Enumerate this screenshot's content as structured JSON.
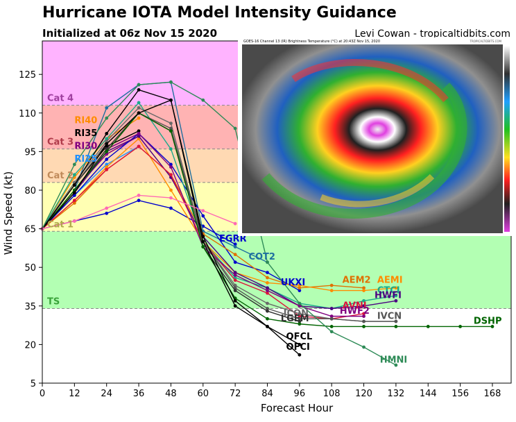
{
  "header": {
    "title": "Hurricane IOTA Model Intensity Guidance",
    "subtitle": "Initialized at 06z Nov 15 2020",
    "credit": "Levi Cowan - tropicaltidbits.com"
  },
  "satellite": {
    "caption": "GOES-16 Channel 13 (IR) Brightness Temperature (°C) at 20:43Z Nov 15, 2020",
    "watermark": "TROPICALTIDBITS.COM"
  },
  "chart_data": {
    "type": "line",
    "xlabel": "Forecast Hour",
    "ylabel": "Wind Speed (kt)",
    "xlim": [
      0,
      175
    ],
    "ylim": [
      5,
      138
    ],
    "xticks": [
      0,
      12,
      24,
      36,
      48,
      60,
      72,
      84,
      96,
      108,
      120,
      132,
      144,
      156,
      168
    ],
    "yticks": [
      5,
      20,
      35,
      50,
      65,
      80,
      95,
      110,
      125
    ],
    "bands": [
      {
        "name": "TS",
        "from": 34,
        "to": 64,
        "color": "#b3ffb3",
        "labelColor": "#3aa33a"
      },
      {
        "name": "Cat 1",
        "from": 64,
        "to": 83,
        "color": "#ffffb3",
        "labelColor": "#b0a84a"
      },
      {
        "name": "Cat 2",
        "from": 83,
        "to": 96,
        "color": "#ffd9b3",
        "labelColor": "#c08a5a"
      },
      {
        "name": "Cat 3",
        "from": 96,
        "to": 113,
        "color": "#ffb3b3",
        "labelColor": "#b03a4a"
      },
      {
        "name": "Cat 4",
        "from": 113,
        "to": 138,
        "color": "#ffb3ff",
        "labelColor": "#a040a0"
      }
    ],
    "series": [
      {
        "name": "RI40",
        "color": "#ff8c00",
        "x": [
          0,
          12,
          24,
          36
        ],
        "y": [
          65,
          85,
          100,
          108
        ]
      },
      {
        "name": "RI35",
        "color": "#000000",
        "x": [
          0,
          12,
          24,
          36
        ],
        "y": [
          65,
          82,
          97,
          103
        ]
      },
      {
        "name": "RI30",
        "color": "#800080",
        "x": [
          0,
          12,
          24,
          36
        ],
        "y": [
          65,
          80,
          94,
          101
        ]
      },
      {
        "name": "RI25",
        "color": "#1e90ff",
        "x": [
          0,
          12,
          24,
          36
        ],
        "y": [
          65,
          78,
          90,
          97
        ]
      },
      {
        "name": "EGRR",
        "color": "#0000cd",
        "x": [
          0,
          12,
          24,
          36,
          48,
          60,
          72
        ],
        "y": [
          65,
          68,
          71,
          76,
          73,
          66,
          59
        ]
      },
      {
        "name": "COT2",
        "color": "#1f6f9f",
        "x": [
          0,
          12,
          24,
          36,
          48,
          60,
          72,
          84
        ],
        "y": [
          65,
          80,
          112,
          121,
          122,
          64,
          58,
          52
        ]
      },
      {
        "name": "UKXI",
        "color": "#0000cd",
        "x": [
          0,
          12,
          24,
          36,
          48,
          60,
          72,
          84,
          96
        ],
        "y": [
          65,
          78,
          92,
          102,
          90,
          70,
          52,
          48,
          41
        ]
      },
      {
        "name": "AEM2",
        "color": "#e07000",
        "x": [
          0,
          12,
          24,
          36,
          48,
          60,
          72,
          84,
          96,
          108,
          120
        ],
        "y": [
          65,
          75,
          88,
          97,
          86,
          63,
          55,
          46,
          42,
          43,
          42
        ]
      },
      {
        "name": "AEMI",
        "color": "#ff8c00",
        "x": [
          0,
          12,
          24,
          36,
          48,
          60,
          72,
          84,
          96,
          108,
          120,
          132
        ],
        "y": [
          65,
          76,
          89,
          100,
          80,
          60,
          48,
          44,
          43,
          41,
          41,
          42
        ]
      },
      {
        "name": "CTCI",
        "color": "#1aaa8a",
        "x": [
          0,
          12,
          24,
          36,
          48,
          60,
          72,
          84,
          96,
          108,
          120,
          132
        ],
        "y": [
          65,
          86,
          100,
          114,
          96,
          60,
          46,
          42,
          36,
          34,
          37,
          39
        ]
      },
      {
        "name": "HWFI",
        "color": "#4b0082",
        "x": [
          0,
          12,
          24,
          36,
          48,
          60,
          72,
          84,
          96,
          108,
          120,
          132
        ],
        "y": [
          65,
          79,
          95,
          101,
          85,
          62,
          48,
          42,
          35,
          34,
          35,
          37
        ]
      },
      {
        "name": "AVNI",
        "color": "#dc143c",
        "x": [
          0,
          12,
          24,
          36,
          48,
          60,
          72,
          84,
          96,
          108,
          120
        ],
        "y": [
          65,
          76,
          88,
          97,
          86,
          60,
          45,
          40,
          31,
          30,
          32
        ]
      },
      {
        "name": "HWF2",
        "color": "#800080",
        "x": [
          0,
          12,
          24,
          36,
          48,
          60,
          72,
          84,
          96,
          108,
          120
        ],
        "y": [
          65,
          79,
          96,
          102,
          89,
          58,
          47,
          41,
          35,
          31,
          31
        ]
      },
      {
        "name": "ICON",
        "color": "#696969",
        "x": [
          0,
          12,
          24,
          36,
          48,
          60,
          72,
          84,
          96,
          108,
          120,
          132
        ],
        "y": [
          65,
          83,
          99,
          112,
          106,
          60,
          43,
          36,
          32,
          30,
          29,
          29
        ]
      },
      {
        "name": "IVCN",
        "color": "#555555",
        "x": [
          0,
          12,
          24,
          36,
          48,
          60,
          72,
          84,
          96,
          108,
          120,
          132
        ],
        "y": [
          65,
          82,
          98,
          110,
          104,
          60,
          42,
          34,
          30,
          30,
          29,
          29
        ]
      },
      {
        "name": "LGEM",
        "color": "#333333",
        "x": [
          0,
          12,
          24,
          36,
          48,
          60,
          72,
          84,
          96
        ],
        "y": [
          65,
          80,
          96,
          110,
          103,
          58,
          41,
          33,
          29
        ]
      },
      {
        "name": "DSHP",
        "color": "#006400",
        "x": [
          0,
          12,
          24,
          36,
          48,
          60,
          72,
          84,
          96,
          108,
          120,
          132,
          144,
          156,
          168
        ],
        "y": [
          65,
          80,
          95,
          110,
          103,
          58,
          38,
          30,
          28,
          27,
          27,
          27,
          27,
          27,
          27
        ]
      },
      {
        "name": "QFCL",
        "color": "#000000",
        "x": [
          0,
          12,
          24,
          36,
          48,
          60,
          72,
          84,
          96
        ],
        "y": [
          65,
          82,
          102,
          119,
          115,
          62,
          37,
          27,
          20
        ]
      },
      {
        "name": "OFCI",
        "color": "#000000",
        "x": [
          0,
          12,
          24,
          36,
          48,
          60,
          72,
          84,
          96
        ],
        "y": [
          65,
          79,
          98,
          110,
          115,
          60,
          35,
          27,
          16
        ]
      },
      {
        "name": "HMNI",
        "color": "#2e8b57",
        "x": [
          0,
          12,
          24,
          36,
          48,
          60,
          72,
          84,
          96,
          108,
          120,
          132
        ],
        "y": [
          65,
          90,
          108,
          121,
          122,
          115,
          104,
          52,
          36,
          25,
          19,
          12
        ]
      },
      {
        "name": "NVGI",
        "color": "#ff69b4",
        "x": [
          0,
          12,
          24,
          36,
          48,
          60,
          72
        ],
        "y": [
          65,
          68,
          73,
          78,
          77,
          72,
          67
        ]
      }
    ],
    "labels": [
      {
        "text": "RI40",
        "x": 12,
        "y": 106,
        "color": "#ff8c00"
      },
      {
        "text": "RI35",
        "x": 12,
        "y": 101,
        "color": "#000000"
      },
      {
        "text": "RI30",
        "x": 12,
        "y": 96,
        "color": "#800080"
      },
      {
        "text": "RI25",
        "x": 12,
        "y": 91,
        "color": "#1e90ff"
      },
      {
        "text": "EGRR",
        "x": 66,
        "y": 60,
        "color": "#0000cd"
      },
      {
        "text": "COT2",
        "x": 77,
        "y": 53,
        "color": "#1f6f9f"
      },
      {
        "text": "UKXI",
        "x": 89,
        "y": 43,
        "color": "#0000cd"
      },
      {
        "text": "AEM2",
        "x": 112,
        "y": 44,
        "color": "#e07000"
      },
      {
        "text": "AEMI",
        "x": 125,
        "y": 44,
        "color": "#ff8c00"
      },
      {
        "text": "CTCI",
        "x": 125,
        "y": 40,
        "color": "#1aaa8a"
      },
      {
        "text": "HWFI",
        "x": 124,
        "y": 38,
        "color": "#4b0082"
      },
      {
        "text": "AVNI",
        "x": 112,
        "y": 34,
        "color": "#dc143c"
      },
      {
        "text": "HWF2",
        "x": 111,
        "y": 32,
        "color": "#800080"
      },
      {
        "text": "ICON",
        "x": 90,
        "y": 31,
        "color": "#696969"
      },
      {
        "text": "IVCN",
        "x": 125,
        "y": 30,
        "color": "#555555"
      },
      {
        "text": "LGEM",
        "x": 89,
        "y": 29,
        "color": "#333333"
      },
      {
        "text": "DSHP",
        "x": 161,
        "y": 28,
        "color": "#006400"
      },
      {
        "text": "QFCL",
        "x": 91,
        "y": 22,
        "color": "#000000"
      },
      {
        "text": "OFCI",
        "x": 91,
        "y": 18,
        "color": "#000000"
      },
      {
        "text": "HMNI",
        "x": 126,
        "y": 13,
        "color": "#2e8b57"
      }
    ]
  }
}
